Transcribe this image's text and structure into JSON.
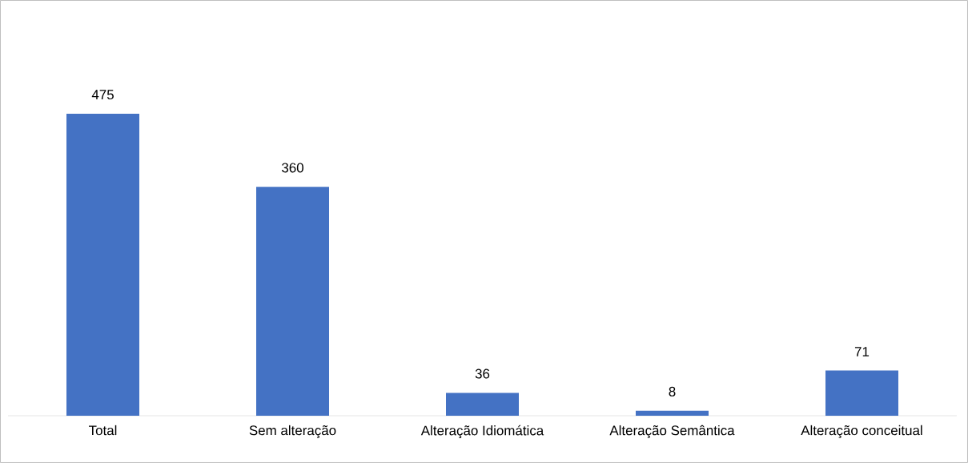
{
  "chart_data": {
    "type": "bar",
    "categories": [
      "Total",
      "Sem alteração",
      "Alteração Idiomática",
      "Alteração Semântica",
      "Alteração conceitual"
    ],
    "values": [
      475,
      360,
      36,
      8,
      71
    ],
    "color": "#4472c4",
    "data_labels": true
  }
}
